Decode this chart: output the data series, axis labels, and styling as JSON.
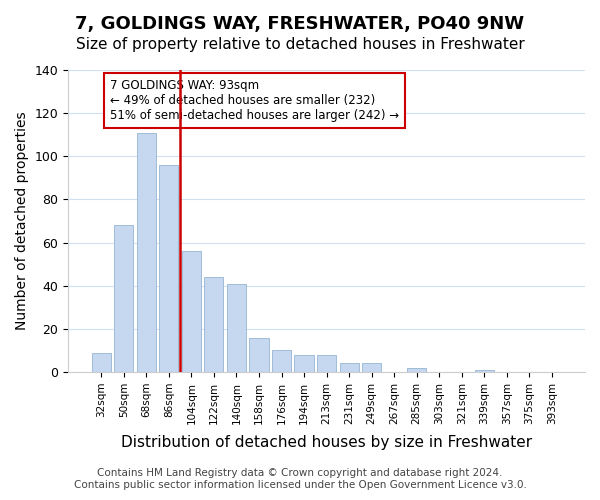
{
  "title": "7, GOLDINGS WAY, FRESHWATER, PO40 9NW",
  "subtitle": "Size of property relative to detached houses in Freshwater",
  "xlabel": "Distribution of detached houses by size in Freshwater",
  "ylabel": "Number of detached properties",
  "bar_labels": [
    "32sqm",
    "50sqm",
    "68sqm",
    "86sqm",
    "104sqm",
    "122sqm",
    "140sqm",
    "158sqm",
    "176sqm",
    "194sqm",
    "213sqm",
    "231sqm",
    "249sqm",
    "267sqm",
    "285sqm",
    "303sqm",
    "321sqm",
    "339sqm",
    "357sqm",
    "375sqm",
    "393sqm"
  ],
  "bar_values": [
    9,
    68,
    111,
    96,
    56,
    44,
    41,
    16,
    10,
    8,
    8,
    4,
    4,
    0,
    2,
    0,
    0,
    1,
    0,
    0,
    0
  ],
  "bar_color": "#c5d8f0",
  "bar_edge_color": "#a0bcd8",
  "vline_x": 3.5,
  "vline_color": "#cc0000",
  "ylim": [
    0,
    140
  ],
  "yticks": [
    0,
    20,
    40,
    60,
    80,
    100,
    120,
    140
  ],
  "annotation_title": "7 GOLDINGS WAY: 93sqm",
  "annotation_line1": "← 49% of detached houses are smaller (232)",
  "annotation_line2": "51% of semi-detached houses are larger (242) →",
  "annotation_box_color": "#ffffff",
  "annotation_box_edge": "#cc0000",
  "footer_line1": "Contains HM Land Registry data © Crown copyright and database right 2024.",
  "footer_line2": "Contains public sector information licensed under the Open Government Licence v3.0.",
  "title_fontsize": 13,
  "subtitle_fontsize": 11,
  "xlabel_fontsize": 11,
  "ylabel_fontsize": 10,
  "footer_fontsize": 7.5,
  "grid_color": "#d0e0f0",
  "background_color": "#ffffff"
}
